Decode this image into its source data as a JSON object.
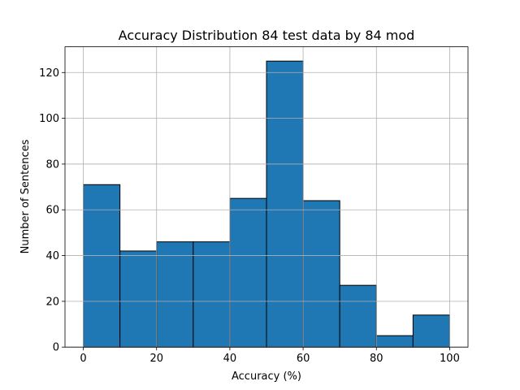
{
  "chart_data": {
    "type": "histogram",
    "title": "Accuracy Distribution 84 test data by 84 mod",
    "xlabel": "Accuracy (%)",
    "ylabel": "Number of Sentences",
    "bins": [
      0,
      10,
      20,
      30,
      40,
      50,
      60,
      70,
      80,
      90,
      100
    ],
    "values": [
      71,
      42,
      46,
      46,
      65,
      125,
      64,
      27,
      5,
      14
    ],
    "color": "#1f77b4",
    "edgecolor": "#000000",
    "xlim": [
      -5,
      105
    ],
    "xticks": [
      0,
      20,
      40,
      60,
      80,
      100
    ],
    "ylim": [
      0,
      131.25
    ],
    "yticks": [
      0,
      20,
      40,
      60,
      80,
      100,
      120
    ],
    "grid": true
  }
}
